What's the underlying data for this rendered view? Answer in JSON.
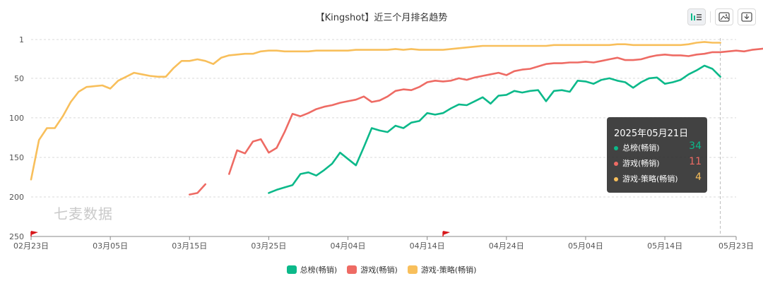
{
  "title": "【Kingshot】近三个月排名趋势",
  "watermark": "七麦数据",
  "toolbar": {
    "items": [
      "bar-chart-icon",
      "image-icon",
      "download-icon"
    ]
  },
  "tooltip": {
    "date": "2025年05月21日",
    "rows": [
      {
        "label": "总榜(畅销)",
        "value": "34",
        "color": "#0cb98a"
      },
      {
        "label": "游戏(畅销)",
        "value": "11",
        "color": "#ee6b64"
      },
      {
        "label": "游戏-策略(畅销)",
        "value": "4",
        "color": "#f8bf5b"
      }
    ]
  },
  "chart_data": {
    "type": "line",
    "title": "【Kingshot】近三个月排名趋势",
    "x_start": "2025-02-23",
    "x_end": "2025-05-23",
    "x_ticks": [
      "02月23日",
      "03月05日",
      "03月15日",
      "03月25日",
      "04月04日",
      "04月14日",
      "04月24日",
      "05月04日",
      "05月14日",
      "05月23日"
    ],
    "y_ticks": [
      "1",
      "50",
      "100",
      "150",
      "200",
      "250"
    ],
    "ylim": [
      1,
      250
    ],
    "y_inverted": true,
    "grid": "horizontal dashed",
    "legend_position": "bottom",
    "flags": [
      "02月23日",
      "04月15日"
    ],
    "crosshair_date": "05月21日",
    "series": [
      {
        "name": "总榜(畅销)",
        "color": "#0cb98a",
        "values": [
          null,
          null,
          null,
          null,
          null,
          null,
          null,
          null,
          null,
          null,
          null,
          null,
          null,
          null,
          null,
          null,
          null,
          null,
          null,
          null,
          null,
          null,
          null,
          null,
          null,
          null,
          null,
          null,
          null,
          null,
          195,
          191,
          188,
          185,
          171,
          169,
          173,
          166,
          158,
          144,
          152,
          160,
          137,
          113,
          116,
          118,
          110,
          113,
          106,
          104,
          94,
          96,
          94,
          88,
          83,
          84,
          79,
          74,
          82,
          72,
          71,
          66,
          68,
          66,
          65,
          79,
          66,
          65,
          67,
          53,
          54,
          57,
          52,
          50,
          53,
          55,
          62,
          55,
          50,
          49,
          57,
          55,
          52,
          45,
          40,
          34,
          38,
          48
        ]
      },
      {
        "name": "游戏(畅销)",
        "color": "#ee6b64",
        "values": [
          null,
          null,
          null,
          null,
          null,
          null,
          null,
          null,
          null,
          null,
          null,
          null,
          null,
          null,
          null,
          null,
          null,
          null,
          null,
          null,
          197,
          195,
          184,
          null,
          null,
          null,
          null,
          null,
          null,
          null,
          null,
          null,
          null,
          null,
          null,
          null,
          null,
          null,
          null,
          null,
          null,
          null,
          null,
          null,
          null,
          null,
          null,
          null,
          null,
          null,
          null,
          null,
          null,
          null,
          null,
          null,
          null,
          null,
          null,
          null,
          null,
          null,
          null,
          null,
          null,
          null,
          null,
          null,
          null,
          null,
          null,
          null,
          null,
          null,
          null,
          null,
          null,
          null,
          null,
          null,
          null,
          null,
          null,
          null,
          null,
          null,
          null,
          null,
          null
        ]
      },
      {
        "name": "游戏(畅销)",
        "color": "#ee6b64",
        "values": [
          null,
          null,
          null,
          null,
          null,
          null,
          null,
          null,
          null,
          null,
          null,
          null,
          null,
          null,
          null,
          null,
          null,
          null,
          null,
          null,
          null,
          null,
          null,
          null,
          null,
          null,
          null,
          null,
          null,
          null,
          null,
          null,
          null,
          null,
          null,
          null,
          null,
          null,
          null,
          null,
          null,
          null,
          null,
          null,
          null,
          null,
          null,
          null,
          null,
          null,
          null,
          null,
          null,
          null,
          null,
          null,
          null,
          null,
          null,
          null,
          null,
          null,
          null,
          null,
          null,
          null,
          null,
          null,
          null,
          null,
          null,
          null,
          null,
          null,
          null,
          null,
          null,
          null,
          null,
          null,
          null,
          null,
          null,
          null,
          null,
          null,
          null,
          null,
          null
        ]
      },
      {
        "name": "游戏-策略(畅销)",
        "color": "#f8bf5b",
        "values": []
      }
    ],
    "red_series": [
      null,
      null,
      null,
      null,
      null,
      null,
      null,
      null,
      null,
      null,
      null,
      null,
      null,
      null,
      null,
      null,
      null,
      null,
      null,
      null,
      197,
      195,
      184,
      null,
      null,
      171,
      141,
      145,
      130,
      127,
      144,
      138,
      118,
      95,
      98,
      94,
      89,
      86,
      84,
      81,
      79,
      77,
      73,
      80,
      78,
      73,
      66,
      64,
      65,
      61,
      55,
      53,
      54,
      53,
      50,
      52,
      49,
      47,
      45,
      43,
      46,
      41,
      39,
      38,
      35,
      32,
      31,
      31,
      30,
      30,
      29,
      30,
      28,
      26,
      24,
      27,
      27,
      26,
      23,
      21,
      20,
      21,
      21,
      22,
      20,
      19,
      17,
      17,
      16,
      15,
      16,
      14,
      13,
      12,
      13,
      15,
      13,
      11,
      13,
      15
    ]
  }
}
